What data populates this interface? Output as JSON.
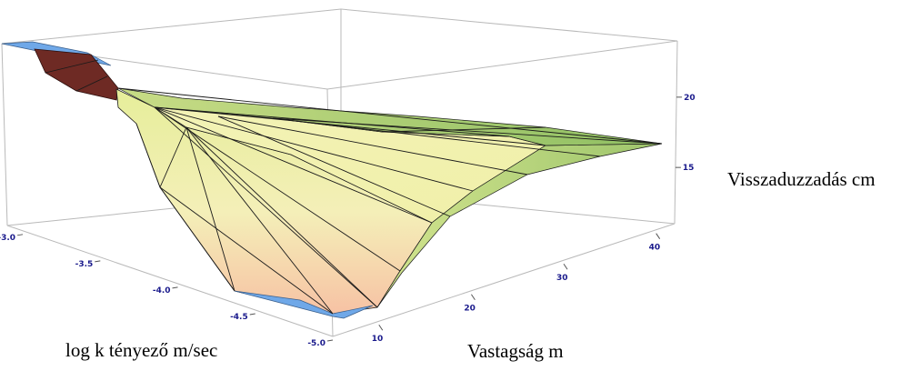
{
  "chart_data": {
    "type": "surface3d",
    "title": "",
    "x_axis": {
      "label": "log k tényező m/sec",
      "ticks": [
        "-3.0",
        "-3.5",
        "-4.0",
        "-4.5",
        "-5.0"
      ],
      "range": [
        -5.0,
        -2.9
      ]
    },
    "y_axis": {
      "label": "Vastagság m",
      "ticks": [
        "10",
        "20",
        "30",
        "40"
      ],
      "range": [
        5,
        42
      ]
    },
    "z_axis": {
      "label": "Visszaduzzadás cm",
      "ticks": [
        "15",
        "20"
      ],
      "range": [
        11,
        24
      ]
    },
    "surface_points": [
      {
        "logk": -3.0,
        "thickness": 5,
        "z": 23.8
      },
      {
        "logk": -3.0,
        "thickness": 42,
        "z": 23.5
      },
      {
        "logk": -3.4,
        "thickness": 8,
        "z": 20.5
      },
      {
        "logk": -3.5,
        "thickness": 20,
        "z": 20.5
      },
      {
        "logk": -3.5,
        "thickness": 42,
        "z": 19.5
      },
      {
        "logk": -4.0,
        "thickness": 8,
        "z": 15.5
      },
      {
        "logk": -4.0,
        "thickness": 42,
        "z": 18.5
      },
      {
        "logk": -4.5,
        "thickness": 8,
        "z": 11.5
      },
      {
        "logk": -4.6,
        "thickness": 20,
        "z": 13.0
      },
      {
        "logk": -5.0,
        "thickness": 8,
        "z": 11.0
      },
      {
        "logk": -5.0,
        "thickness": 42,
        "z": 17.5
      }
    ],
    "grid": false,
    "colors": {
      "box": "#b9b9b9",
      "tick_text": "#1a1a8c",
      "underside": "#6fa8e8",
      "dark_face": "#6e2a24",
      "surface_high": "#9bc267",
      "surface_mid": "#f1f1b0",
      "surface_low": "#f6c7ab"
    }
  }
}
